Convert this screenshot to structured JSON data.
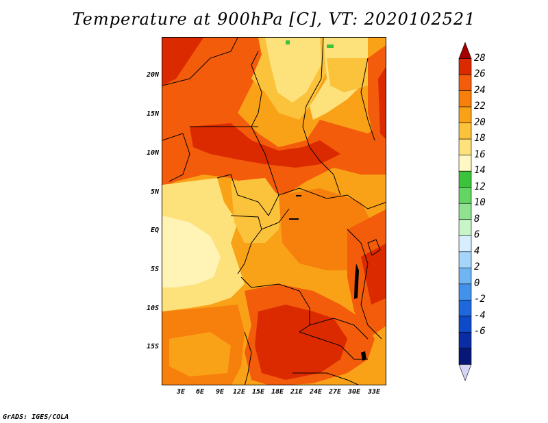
{
  "title": "Temperature at 900hPa [C], VT: 2020102521",
  "credit": "GrADS: IGES/COLA",
  "map": {
    "y_axis_labels": [
      "20N",
      "15N",
      "10N",
      "5N",
      "EQ",
      "5S",
      "10S",
      "15S"
    ],
    "x_axis_labels": [
      "3E",
      "6E",
      "9E",
      "12E",
      "15E",
      "18E",
      "21E",
      "24E",
      "27E",
      "30E",
      "33E"
    ]
  },
  "colorbar": {
    "labels": [
      "28",
      "26",
      "24",
      "22",
      "20",
      "18",
      "16",
      "14",
      "12",
      "10",
      "8",
      "6",
      "4",
      "2",
      "0",
      "-2",
      "-4",
      "-6"
    ],
    "colors": [
      "#a50000",
      "#dc2a00",
      "#f25c0a",
      "#f7800d",
      "#f9a217",
      "#fbc33c",
      "#fde27c",
      "#fff8c4",
      "#3cc33c",
      "#63d563",
      "#8fe28f",
      "#c8f5c8",
      "#d6eeff",
      "#a5d5fa",
      "#6fb5f4",
      "#4292ec",
      "#1f68db",
      "#0d4ac8",
      "#0a2da5",
      "#071777",
      "#d4d4f5"
    ]
  }
}
